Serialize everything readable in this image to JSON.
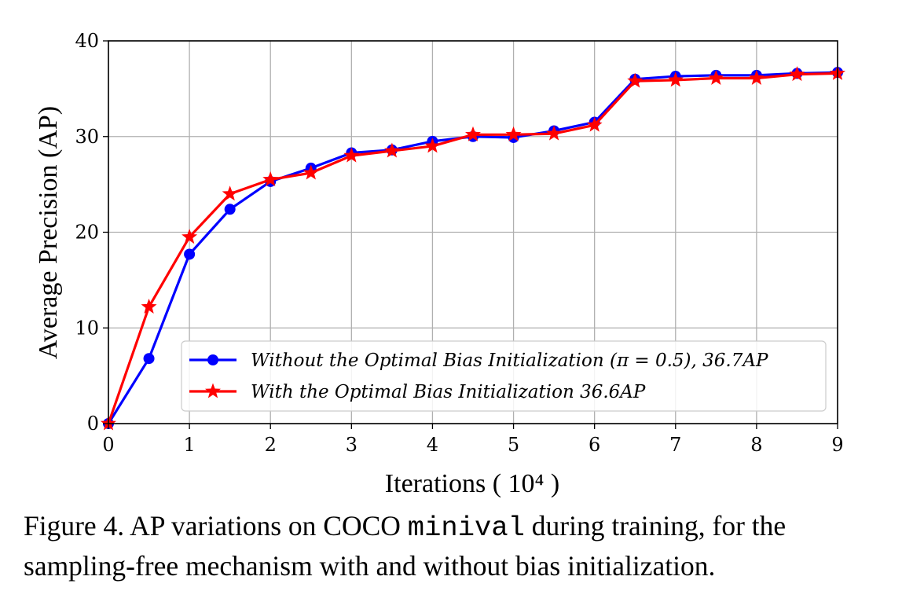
{
  "chart_data": {
    "type": "line",
    "xlabel": "Iterations ( 10⁴ )",
    "ylabel": "Average Precision (AP)",
    "xlim": [
      0,
      9
    ],
    "ylim": [
      0,
      40
    ],
    "xticks": [
      "0",
      "1",
      "2",
      "3",
      "4",
      "5",
      "6",
      "7",
      "8",
      "9"
    ],
    "yticks": [
      "0",
      "10",
      "20",
      "30",
      "40"
    ],
    "grid": true,
    "legend_position": "lower-right",
    "x": [
      0,
      0.5,
      1,
      1.5,
      2,
      2.5,
      3,
      3.5,
      4,
      4.5,
      5,
      5.5,
      6,
      6.5,
      7,
      7.5,
      8,
      8.5,
      9
    ],
    "series": [
      {
        "name": "Without the Optimal Bias Initialization (π = 0.5), 36.7AP",
        "color": "#0000ff",
        "marker": "circle",
        "values": [
          0,
          6.8,
          17.7,
          22.4,
          25.3,
          26.7,
          28.3,
          28.6,
          29.5,
          30.0,
          29.9,
          30.6,
          31.5,
          36.0,
          36.3,
          36.4,
          36.4,
          36.6,
          36.7
        ]
      },
      {
        "name": "With the Optimal Bias Initialization 36.6AP",
        "color": "#ff0000",
        "marker": "star",
        "values": [
          0,
          12.2,
          19.5,
          24.0,
          25.5,
          26.2,
          28.0,
          28.5,
          29.0,
          30.2,
          30.2,
          30.3,
          31.2,
          35.8,
          35.9,
          36.1,
          36.1,
          36.5,
          36.6
        ]
      }
    ]
  },
  "caption": {
    "prefix": "Figure 4. AP variations on COCO ",
    "code": "minival",
    "suffix": " during training, for the sampling-free mechanism with and without bias initialization."
  }
}
